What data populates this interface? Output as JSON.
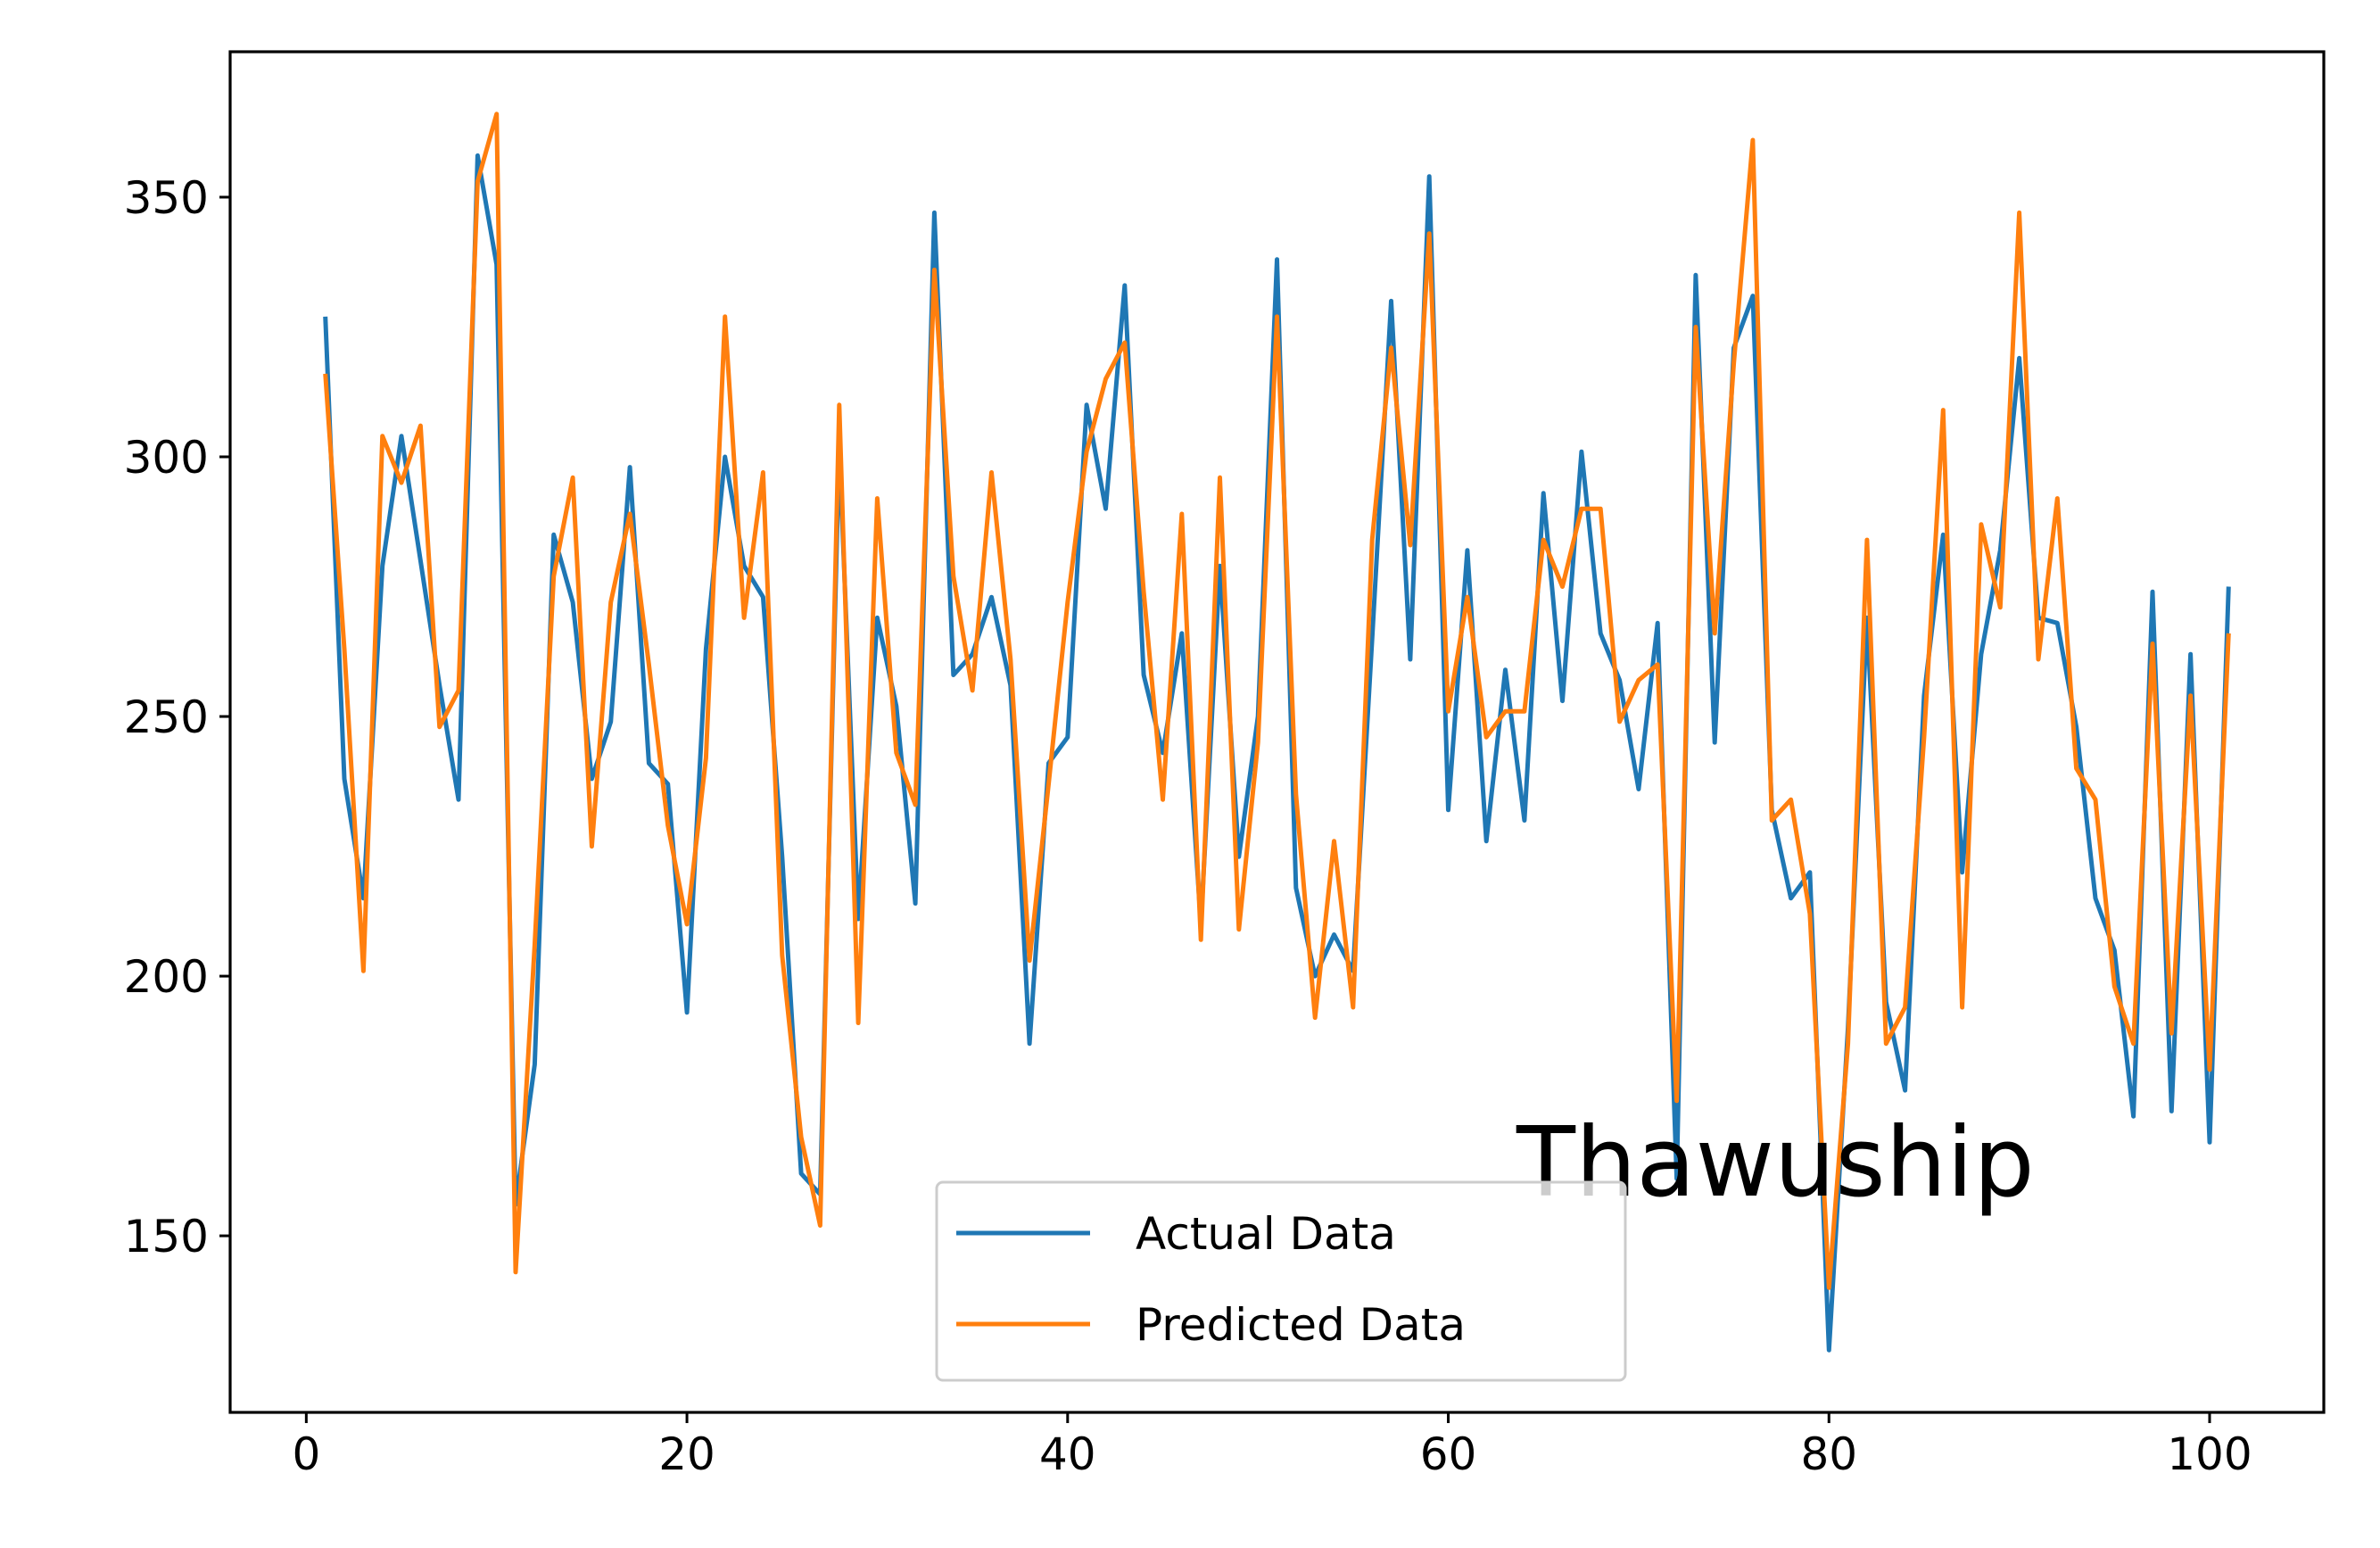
{
  "chart_data": {
    "type": "line",
    "title": "",
    "xlabel": "",
    "ylabel": "",
    "xlim": [
      -4,
      106
    ],
    "ylim": [
      116,
      378
    ],
    "x_ticks": [
      0,
      20,
      40,
      60,
      80,
      100
    ],
    "x_tick_labels": [
      "0",
      "20",
      "40",
      "60",
      "80",
      "100"
    ],
    "y_ticks": [
      150,
      200,
      250,
      300,
      350
    ],
    "y_tick_labels": [
      "150",
      "200",
      "250",
      "300",
      "350"
    ],
    "grid": false,
    "legend_position": "lower center",
    "annotation": "Thawuship",
    "x": [
      1,
      2,
      3,
      4,
      5,
      6,
      7,
      8,
      9,
      10,
      11,
      12,
      13,
      14,
      15,
      16,
      17,
      18,
      19,
      20,
      21,
      22,
      23,
      24,
      25,
      26,
      27,
      28,
      29,
      30,
      31,
      32,
      33,
      34,
      35,
      36,
      37,
      38,
      39,
      40,
      41,
      42,
      43,
      44,
      45,
      46,
      47,
      48,
      49,
      50,
      51,
      52,
      53,
      54,
      55,
      56,
      57,
      58,
      59,
      60,
      61,
      62,
      63,
      64,
      65,
      66,
      67,
      68,
      69,
      70,
      71,
      72,
      73,
      74,
      75,
      76,
      77,
      78,
      79,
      80,
      81,
      82,
      83,
      84,
      85,
      86,
      87,
      88,
      89,
      90,
      91,
      92,
      93,
      94,
      95,
      96,
      97,
      98,
      99,
      100,
      101
    ],
    "series": [
      {
        "name": "Actual Data",
        "color": "#1f77b4",
        "values": [
          327,
          238,
          215,
          279,
          304,
          280,
          256,
          234,
          358,
          337,
          156,
          183,
          285,
          272,
          238,
          249,
          298,
          241,
          237,
          193,
          263,
          300,
          279,
          273,
          223,
          162,
          158,
          302,
          211,
          269,
          252,
          214,
          347,
          258,
          262,
          273,
          256,
          187,
          241,
          246,
          310,
          290,
          333,
          258,
          243,
          266,
          210,
          279,
          223,
          250,
          338,
          217,
          200,
          208,
          201,
          265,
          330,
          261,
          354,
          232,
          282,
          226,
          259,
          230,
          293,
          253,
          301,
          266,
          257,
          236,
          268,
          161,
          335,
          245,
          321,
          331,
          232,
          215,
          220,
          128,
          190,
          269,
          195,
          178,
          254,
          285,
          220,
          262,
          282,
          319,
          269,
          268,
          248,
          215,
          205,
          173,
          274,
          174,
          262,
          168,
          275
        ]
      },
      {
        "name": "Predicted Data",
        "color": "#ff7f0e",
        "values": [
          316,
          263,
          201,
          304,
          295,
          306,
          248,
          255,
          353,
          366,
          143,
          206,
          277,
          296,
          225,
          272,
          289,
          260,
          229,
          210,
          242,
          327,
          269,
          297,
          204,
          169,
          152,
          310,
          191,
          292,
          243,
          233,
          336,
          277,
          255,
          297,
          261,
          203,
          237,
          272,
          301,
          315,
          322,
          274,
          234,
          289,
          207,
          296,
          209,
          245,
          327,
          235,
          192,
          226,
          194,
          284,
          321,
          283,
          343,
          251,
          273,
          246,
          251,
          251,
          284,
          275,
          290,
          290,
          249,
          257,
          260,
          176,
          325,
          266,
          318,
          361,
          230,
          234,
          212,
          140,
          187,
          284,
          187,
          194,
          246,
          309,
          194,
          287,
          271,
          347,
          261,
          292,
          240,
          234,
          198,
          187,
          264,
          189,
          254,
          182,
          266
        ]
      }
    ]
  }
}
